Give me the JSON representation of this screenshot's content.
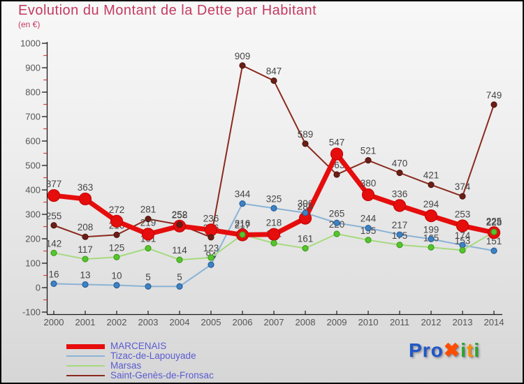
{
  "header": {
    "title": "Evolution du Montant de la Dette par Habitant",
    "subtitle": "(en €)",
    "title_color": "#c43a60"
  },
  "chart_data": {
    "type": "line",
    "title": "Evolution du Montant de la Dette par Habitant",
    "subtitle": "(en €)",
    "x": [
      2000,
      2001,
      2002,
      2003,
      2004,
      2005,
      2006,
      2007,
      2008,
      2009,
      2010,
      2011,
      2012,
      2013,
      2014
    ],
    "ylim": [
      -100,
      1000
    ],
    "ytick_step": 100,
    "grid": false,
    "legend_position": "bottom-left",
    "value_labels_shown": true,
    "series": [
      {
        "name": "MARCENAIS",
        "line_color": "#e60d0d",
        "dot_color": "#e60d0d",
        "dot_stroke": "#c40707",
        "line_width": 7,
        "dot_radius": 8.5,
        "values": [
          377,
          363,
          272,
          219,
          252,
          236,
          216,
          218,
          284,
          547,
          380,
          336,
          294,
          253,
          225
        ]
      },
      {
        "name": "Tizac-de-Lapouyade",
        "line_color": "#8ab3d6",
        "dot_color": "#3e82c4",
        "dot_stroke": "#2a6099",
        "line_width": 2,
        "dot_radius": 4,
        "values": [
          16,
          13,
          10,
          5,
          5,
          94,
          344,
          325,
          306,
          265,
          244,
          217,
          199,
          174,
          151
        ]
      },
      {
        "name": "Marsas",
        "line_color": "#a6da7e",
        "dot_color": "#56c52d",
        "dot_stroke": "#3f9e1e",
        "line_width": 2,
        "dot_radius": 4,
        "values": [
          142,
          117,
          125,
          161,
          114,
          123,
          217,
          182,
          161,
          220,
          195,
          175,
          165,
          153,
          228
        ]
      },
      {
        "name": "Saint-Genès-de-Fronsac",
        "line_color": "#8a2a1e",
        "dot_color": "#6b1f16",
        "dot_stroke": "#521712",
        "line_width": 2,
        "dot_radius": 4,
        "values": [
          255,
          208,
          216,
          281,
          258,
          206,
          909,
          847,
          589,
          463,
          521,
          470,
          421,
          374,
          749
        ]
      }
    ],
    "value_label_color": "#454545",
    "axis_color": "#1a1a1a",
    "tick_label_color": "#555555",
    "minor_tick_color": "#e04040"
  },
  "legend": {
    "text_color": "#5b5bd0"
  },
  "logo": {
    "text_parts": [
      {
        "text": "Pro",
        "color": "#1f57c9"
      },
      {
        "text": "✖",
        "color": "#ff4d00"
      },
      {
        "text": "i",
        "color": "#2da32d"
      },
      {
        "text": "t",
        "color": "#ff8c00"
      },
      {
        "text": "i",
        "color": "#2da32d"
      }
    ]
  }
}
